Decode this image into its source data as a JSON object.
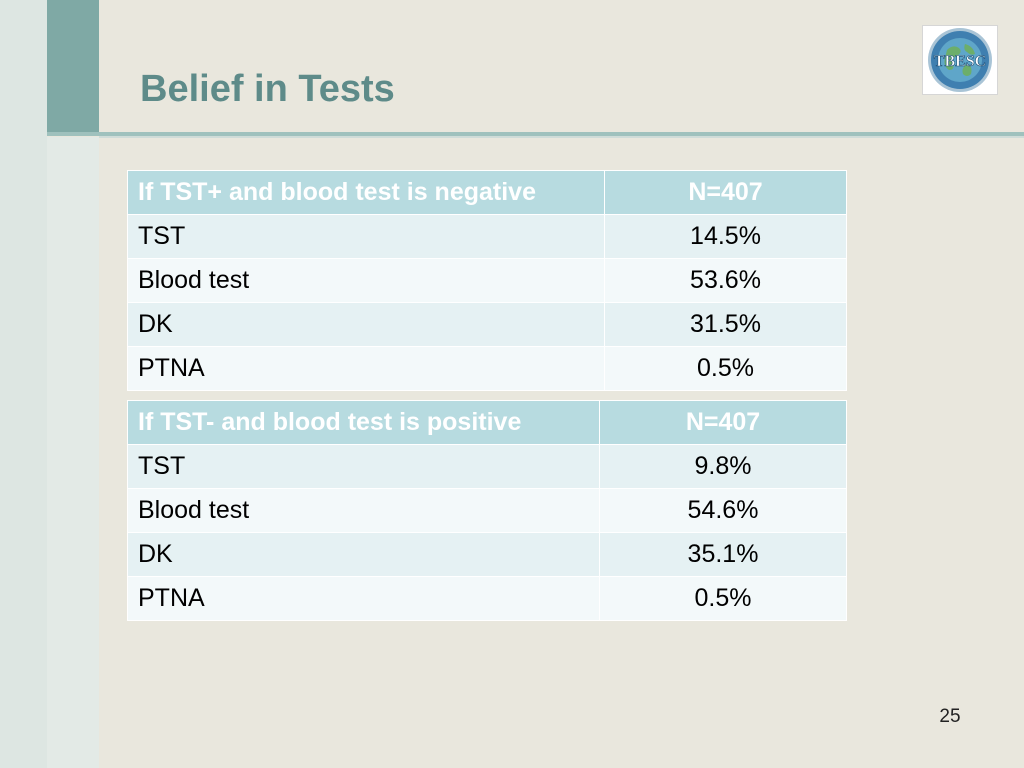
{
  "slide": {
    "title": "Belief in Tests",
    "page_number": "25",
    "logo_text": "TBESC"
  },
  "tables": [
    {
      "header": [
        "If TST+ and blood test is negative",
        "N=407"
      ],
      "rows": [
        [
          "TST",
          "14.5%"
        ],
        [
          "Blood test",
          "53.6%"
        ],
        [
          "DK",
          "31.5%"
        ],
        [
          "PTNA",
          "0.5%"
        ]
      ]
    },
    {
      "header": [
        "If TST- and blood test is positive",
        "N=407"
      ],
      "rows": [
        [
          "TST",
          "9.8%"
        ],
        [
          "Blood test",
          "54.6%"
        ],
        [
          "DK",
          "35.1%"
        ],
        [
          "PTNA",
          "0.5%"
        ]
      ]
    }
  ],
  "colors": {
    "title": "#5e8b89",
    "accent_bar": "#7fa9a5",
    "table_header": "#b7dbe0",
    "row_odd": "#e5f1f3",
    "row_even": "#f3f9fa",
    "background": "#e9e7dd"
  }
}
